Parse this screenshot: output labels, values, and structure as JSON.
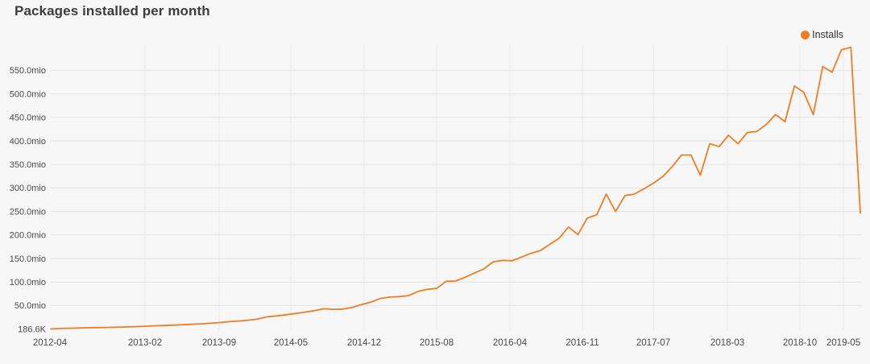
{
  "header": {
    "title": "Packages installed per month"
  },
  "legend": {
    "items": [
      {
        "label": "Installs",
        "color": "#ee7d23"
      }
    ]
  },
  "colors": {
    "background": "#f7f7f7",
    "line": "#ee7d23",
    "grid_horizontal": "#e3e3e3",
    "grid_vertical": "#e8e8e8",
    "axis_text": "#4a4a4a",
    "title_text": "#3c3c3c"
  },
  "chart_data": {
    "type": "line",
    "title": "Packages installed per month",
    "legend_position": "top-right",
    "grid": true,
    "x_tick_labels": [
      "2012-04",
      "2013-02",
      "2013-09",
      "2014-05",
      "2014-12",
      "2015-08",
      "2016-04",
      "2016-11",
      "2017-07",
      "2018-03",
      "2018-10",
      "2019-05"
    ],
    "y_tick_labels": [
      "186.6K",
      "50.0mio",
      "100.0mio",
      "150.0mio",
      "200.0mio",
      "250.0mio",
      "300.0mio",
      "350.0mio",
      "400.0mio",
      "450.0mio",
      "500.0mio",
      "550.0mio"
    ],
    "y_min_label": "186.6K",
    "ylim_mio": [
      0.1866,
      615
    ],
    "series": [
      {
        "name": "Installs",
        "color": "#ee7d23",
        "x": [
          "2012-04",
          "2012-05",
          "2012-06",
          "2012-07",
          "2012-08",
          "2012-09",
          "2012-10",
          "2012-11",
          "2012-12",
          "2013-01",
          "2013-02",
          "2013-03",
          "2013-04",
          "2013-05",
          "2013-06",
          "2013-07",
          "2013-08",
          "2013-09",
          "2013-10",
          "2013-11",
          "2013-12",
          "2014-01",
          "2014-02",
          "2014-03",
          "2014-04",
          "2014-05",
          "2014-06",
          "2014-07",
          "2014-08",
          "2014-09",
          "2014-10",
          "2014-11",
          "2014-12",
          "2015-01",
          "2015-02",
          "2015-03",
          "2015-04",
          "2015-05",
          "2015-06",
          "2015-07",
          "2015-08",
          "2015-09",
          "2015-10",
          "2015-11",
          "2015-12",
          "2016-01",
          "2016-02",
          "2016-03",
          "2016-04",
          "2016-05",
          "2016-06",
          "2016-07",
          "2016-08",
          "2016-09",
          "2016-10",
          "2016-11",
          "2016-12",
          "2017-01",
          "2017-02",
          "2017-03",
          "2017-04",
          "2017-05",
          "2017-06",
          "2017-07",
          "2017-08",
          "2017-09",
          "2017-10",
          "2017-11",
          "2017-12",
          "2018-01",
          "2018-02",
          "2018-03",
          "2018-04",
          "2018-05",
          "2018-06",
          "2018-07",
          "2018-08",
          "2018-09",
          "2018-10",
          "2018-11",
          "2018-12",
          "2019-01",
          "2019-02",
          "2019-03",
          "2019-04",
          "2019-05",
          "2019-06"
        ],
        "values_mio": [
          0.19,
          1.2,
          1.8,
          2.2,
          2.7,
          3.1,
          3.5,
          4.0,
          4.5,
          5.2,
          6.0,
          6.8,
          7.5,
          8.3,
          9.2,
          10.2,
          11.2,
          12.3,
          13.8,
          15.8,
          17.2,
          18.8,
          21.5,
          26.0,
          28.0,
          30.5,
          33.0,
          36.0,
          39.0,
          43.1,
          42.0,
          42.5,
          45.8,
          52.0,
          57.0,
          65.0,
          68.0,
          69.0,
          71.0,
          80.0,
          84.5,
          86.5,
          101.5,
          102.0,
          110.0,
          119.0,
          128.0,
          143.0,
          146.0,
          145.0,
          153.0,
          161.0,
          167.0,
          180.0,
          193.0,
          217.0,
          201.0,
          236.0,
          243.0,
          287.0,
          250.0,
          284.0,
          287.0,
          298.0,
          310.0,
          324.0,
          345.0,
          370.0,
          370.0,
          327.0,
          394.0,
          388.0,
          412.0,
          394.0,
          418.0,
          420.0,
          435.0,
          456.0,
          441.0,
          517.0,
          503.0,
          456.0,
          558.0,
          546.0,
          594.0,
          599.0,
          247.0
        ]
      }
    ]
  }
}
